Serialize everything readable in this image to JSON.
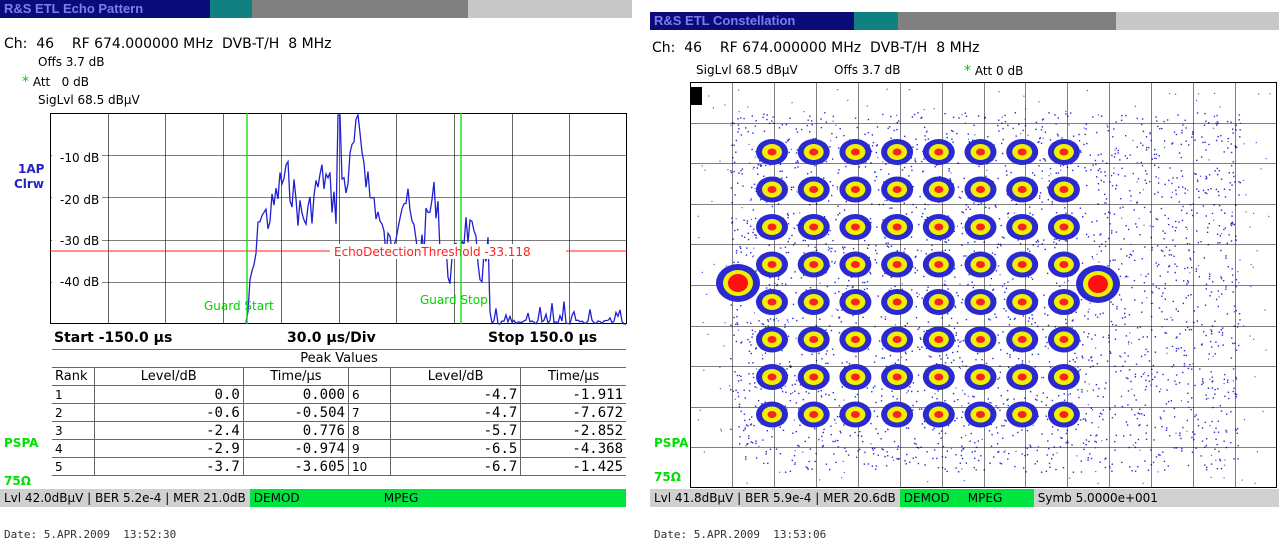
{
  "left": {
    "title": "R&S ETL Echo Pattern",
    "channel_line": "Ch:  46    RF 674.000000 MHz  DVB-T/H  8 MHz",
    "offs": "Offs 3.7 dB",
    "att": "Att   0 dB",
    "siglvl": "SigLvl 68.5 dBµV",
    "trace_label_1": "1AP",
    "trace_label_2": "Clrw",
    "y_ticks": [
      "-10 dB",
      "-20 dB",
      "-30 dB",
      "-40 dB"
    ],
    "threshold_label": "EchoDetectionThreshold -33.118",
    "guard_start": "Guard Start",
    "guard_stop": "Guard Stop",
    "start": "Start -150.0 µs",
    "div": "30.0 µs/Div",
    "stop": "Stop 150.0 µs",
    "peak_title": "Peak Values",
    "headers": [
      "Rank",
      "Level/dB",
      "Time/µs",
      "Level/dB",
      "Time/µs"
    ],
    "rows": [
      {
        "r1": "1",
        "l1": "0.0",
        "t1": "0.000",
        "r2": "6",
        "l2": "-4.7",
        "t2": "-1.911"
      },
      {
        "r1": "2",
        "l1": "-0.6",
        "t1": "-0.504",
        "r2": "7",
        "l2": "-4.7",
        "t2": "-7.672"
      },
      {
        "r1": "3",
        "l1": "-2.4",
        "t1": "0.776",
        "r2": "8",
        "l2": "-5.7",
        "t2": "-2.852"
      },
      {
        "r1": "4",
        "l1": "-2.9",
        "t1": "-0.974",
        "r2": "9",
        "l2": "-6.5",
        "t2": "-4.368"
      },
      {
        "r1": "5",
        "l1": "-3.7",
        "t1": "-3.605",
        "r2": "10",
        "l2": "-6.7",
        "t2": "-1.425"
      }
    ],
    "pspa": "PSPA",
    "ohm": "75Ω",
    "status": {
      "lvl": "Lvl 42.0dBµV",
      "ber": "BER 5.2e-4",
      "mer": "MER 21.0dB",
      "demod": "DEMOD",
      "mpeg": "MPEG"
    },
    "date": "Date: 5.APR.2009  13:52:30"
  },
  "right": {
    "title": "R&S ETL Constellation",
    "channel_line": "Ch:  46    RF 674.000000 MHz  DVB-T/H  8 MHz",
    "siglvl": "SigLvl 68.5 dBµV",
    "offs": "Offs 3.7 dB",
    "att": "Att 0 dB",
    "pspa": "PSPA",
    "ohm": "75Ω",
    "status": {
      "lvl": "Lvl 41.8dBµV",
      "ber": "BER 5.9e-4",
      "mer": "MER 20.6dB",
      "demod": "DEMOD",
      "mpeg": "MPEG",
      "symb": "Symb 5.0000e+001"
    },
    "date": "Date: 5.APR.2009  13:53:06"
  },
  "colors": {
    "title_dark": "#0a0a78",
    "title_teal": "#108080",
    "title_gray": "#808080",
    "title_light": "#c8c8c8",
    "trace": "#2020d0",
    "marker": "#00e000",
    "threshold": "#ff2020",
    "status_green": "#00e440"
  }
}
